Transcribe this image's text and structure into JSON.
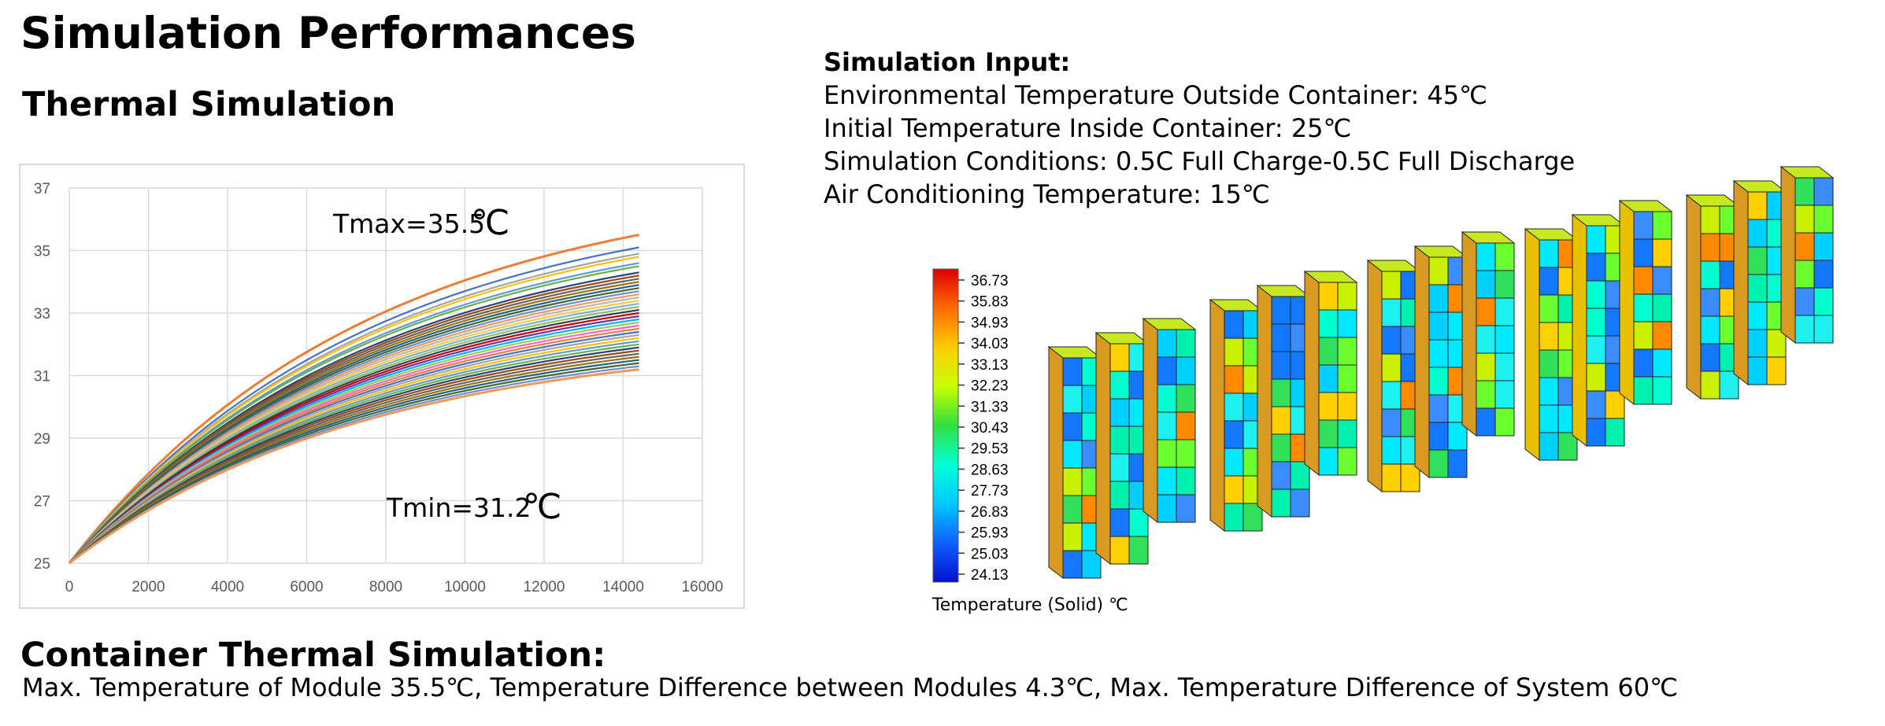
{
  "page_title": "Simulation Performances",
  "thermal_section_title": "Thermal Simulation",
  "simulation_input": {
    "heading": "Simulation Input:",
    "lines": [
      "Environmental Temperature Outside  Container: 45℃",
      "Initial Temperature Inside Container: 25℃",
      "Simulation Conditions: 0.5C Full Charge-0.5C Full Discharge",
      "Air Conditioning Temperature: 15℃"
    ]
  },
  "chart_data": {
    "type": "line",
    "xlim": [
      0,
      16000
    ],
    "ylim": [
      25,
      37
    ],
    "x_ticks": [
      0,
      2000,
      4000,
      6000,
      8000,
      10000,
      12000,
      14000,
      16000
    ],
    "y_ticks": [
      25,
      27,
      29,
      31,
      33,
      35,
      37
    ],
    "grid": true,
    "x_end": 14400,
    "start_value": 25,
    "series_end_values": [
      35.5,
      35.1,
      34.9,
      34.8,
      34.6,
      34.5,
      34.3,
      34.2,
      34.1,
      34.0,
      33.9,
      33.8,
      33.7,
      33.6,
      33.5,
      33.4,
      33.3,
      33.2,
      33.1,
      33.0,
      32.9,
      32.8,
      32.7,
      32.6,
      32.5,
      32.4,
      32.3,
      32.2,
      32.1,
      32.0,
      31.9,
      31.8,
      31.7,
      31.6,
      31.5,
      31.4,
      31.3,
      31.2
    ],
    "series_colors": [
      "#ed7d31",
      "#4472c4",
      "#a5a5a5",
      "#ffc000",
      "#5b9bd5",
      "#70ad47",
      "#264478",
      "#9e480e",
      "#636363",
      "#997300",
      "#255e91",
      "#43682b",
      "#698ed0",
      "#f1975a",
      "#b7b7b7",
      "#ffcd33",
      "#7cafdd",
      "#8cc168",
      "#333f50",
      "#c00000",
      "#7030a0",
      "#00b0f0",
      "#92d050",
      "#ff66cc"
    ],
    "annotations": {
      "tmax_text": "Tmax=35.5",
      "tmax_unit": "℃",
      "tmin_text": "Tmin=31.2",
      "tmin_unit": "℃"
    }
  },
  "heatmap_legend": {
    "values": [
      "36.73",
      "35.83",
      "34.93",
      "34.03",
      "33.13",
      "32.23",
      "31.33",
      "30.43",
      "29.53",
      "28.63",
      "27.73",
      "26.83",
      "25.93",
      "25.03",
      "24.13"
    ],
    "caption": "Temperature (Solid) ℃",
    "gradient_colors": [
      "#dd0000",
      "#ff6a00",
      "#ffcc00",
      "#c8ff00",
      "#30e040",
      "#00ffd8",
      "#00c8ff",
      "#1060ff",
      "#0010d0"
    ]
  },
  "container_section": {
    "title": "Container Thermal Simulation:",
    "description": "Max. Temperature of Module 35.5℃, Temperature Difference between Modules 4.3℃, Max. Temperature Difference of System 60℃"
  }
}
